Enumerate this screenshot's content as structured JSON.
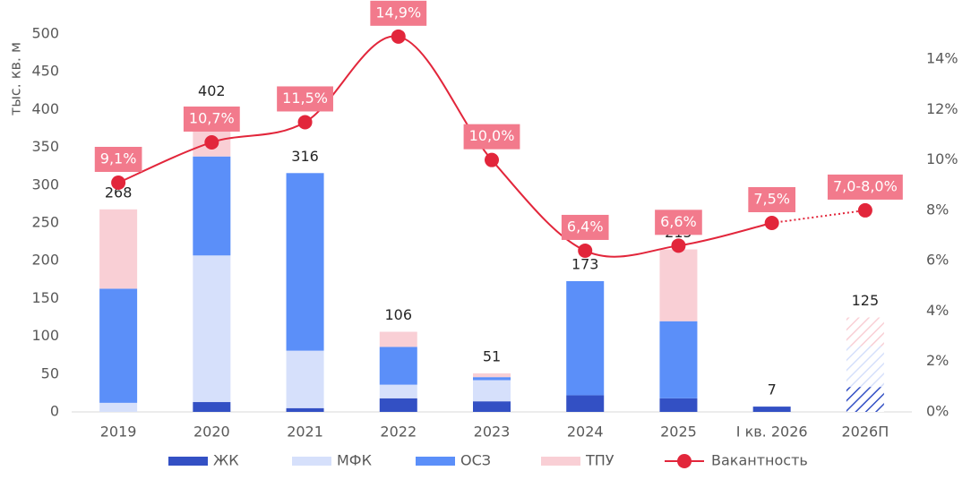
{
  "chart_data": {
    "type": "bar-line",
    "y_label": "тыс. кв. м",
    "categories": [
      "2019",
      "2020",
      "2021",
      "2022",
      "2023",
      "2024",
      "2025",
      "I кв. 2026",
      "2026П"
    ],
    "series": [
      {
        "name": "ЖК",
        "color": "#3350c4",
        "values": [
          0,
          13,
          5,
          18,
          14,
          22,
          18,
          7,
          33
        ]
      },
      {
        "name": "МФК",
        "color": "#d6e0fb",
        "values": [
          12,
          194,
          76,
          18,
          28,
          0,
          0,
          0,
          54
        ]
      },
      {
        "name": "ОСЗ",
        "color": "#5b8ff9",
        "values": [
          151,
          131,
          235,
          50,
          4,
          151,
          102,
          0,
          0
        ]
      },
      {
        "name": "ТПУ",
        "color": "#f9cfd5",
        "values": [
          105,
          64,
          0,
          20,
          5,
          0,
          95,
          0,
          38
        ]
      },
      {
        "name": "Вакантность",
        "type": "line",
        "axis": "y2",
        "color": "#e2263b",
        "values": [
          9.1,
          10.7,
          11.5,
          14.9,
          10.0,
          6.4,
          6.6,
          7.5,
          8.0
        ],
        "value_labels": [
          "9,1%",
          "10,7%",
          "11,5%",
          "14,9%",
          "10,0%",
          "6,4%",
          "6,6%",
          "7,5%",
          "7,0-8,0%"
        ]
      }
    ],
    "totals": [
      268,
      402,
      316,
      106,
      51,
      173,
      215,
      7,
      125
    ],
    "forecast_index": 8,
    "ylim": [
      0,
      500
    ],
    "yticks": [
      0,
      50,
      100,
      150,
      200,
      250,
      300,
      350,
      400,
      450,
      500
    ],
    "y2lim": [
      0,
      15
    ],
    "y2ticks": [
      {
        "value": 0,
        "label": "0%"
      },
      {
        "value": 2,
        "label": "2%"
      },
      {
        "value": 4,
        "label": "4%"
      },
      {
        "value": 6,
        "label": "6%"
      },
      {
        "value": 8,
        "label": "8%"
      },
      {
        "value": 10,
        "label": "10%"
      },
      {
        "value": 12,
        "label": "12%"
      },
      {
        "value": 14,
        "label": "14%"
      }
    ],
    "legend": "bottom"
  }
}
